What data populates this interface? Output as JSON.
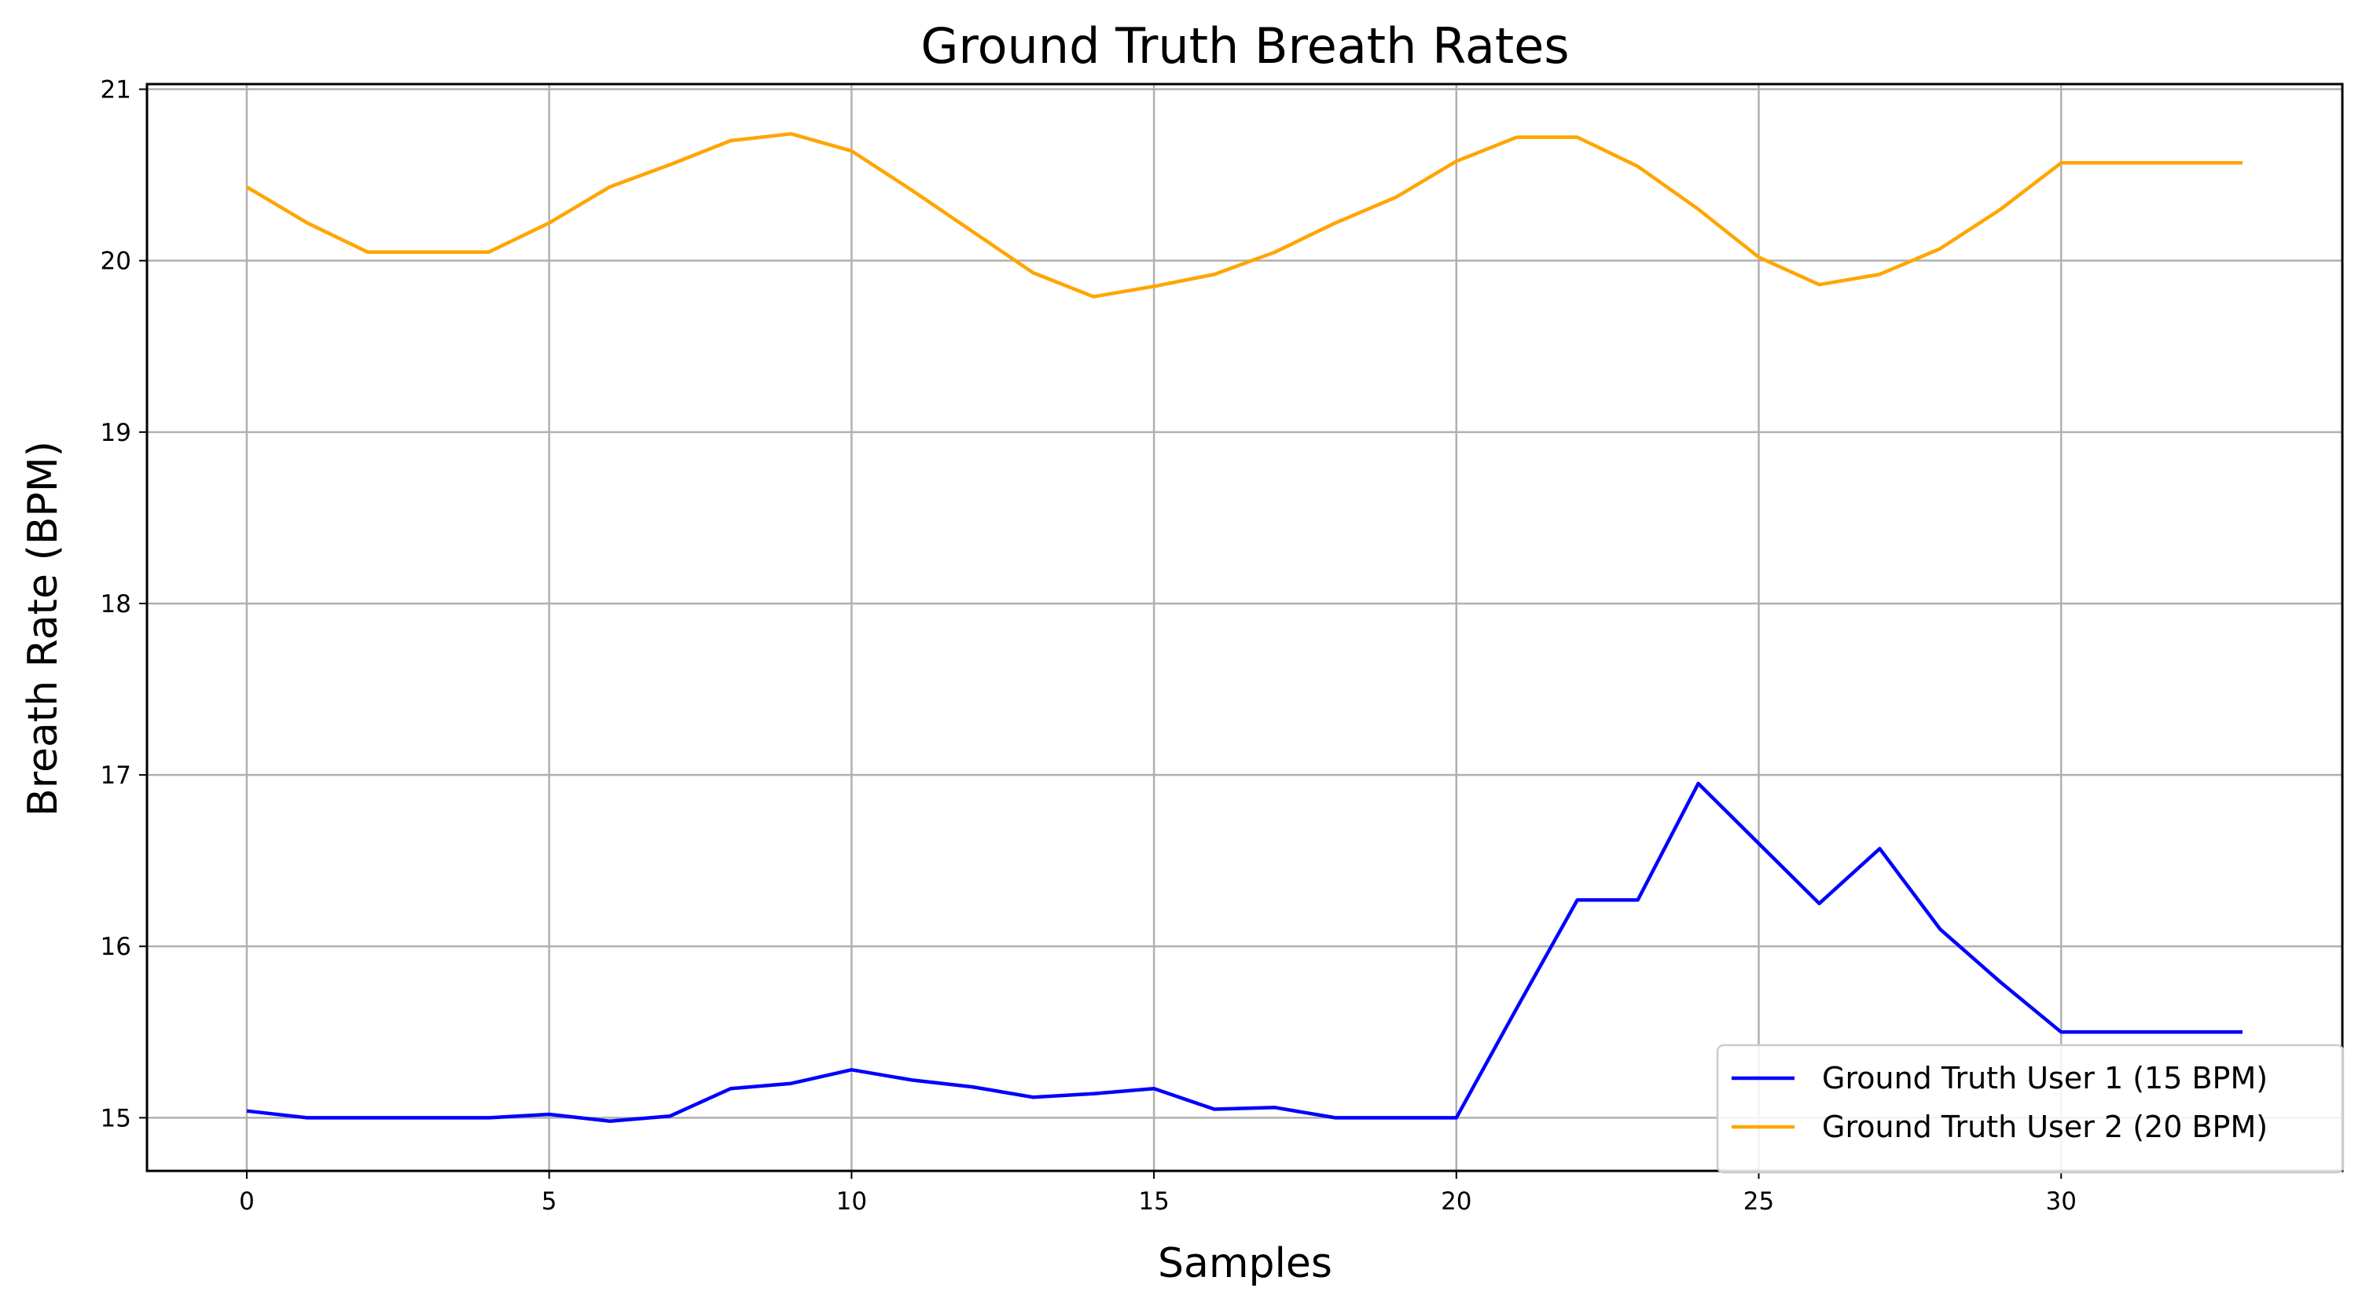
{
  "chart_data": {
    "type": "line",
    "title": "Ground Truth Breath Rates",
    "xlabel": "Samples",
    "ylabel": "Breath Rate (BPM)",
    "xlim": [
      -1.65,
      34.65
    ],
    "ylim": [
      14.69,
      21.03
    ],
    "x_ticks": [
      0,
      5,
      10,
      15,
      20,
      25,
      30
    ],
    "y_ticks": [
      15,
      16,
      17,
      18,
      19,
      20,
      21
    ],
    "grid": true,
    "legend_position": "lower right",
    "x": [
      0,
      1,
      2,
      3,
      4,
      5,
      6,
      7,
      8,
      9,
      10,
      11,
      12,
      13,
      14,
      15,
      16,
      17,
      18,
      19,
      20,
      21,
      22,
      23,
      24,
      25,
      26,
      27,
      28,
      29,
      30,
      31,
      32,
      33
    ],
    "series": [
      {
        "name": "Ground Truth User 1 (15 BPM)",
        "color": "#0000ff",
        "values": [
          15.04,
          15.0,
          15.0,
          15.0,
          15.0,
          15.02,
          14.98,
          15.01,
          15.17,
          15.2,
          15.28,
          15.22,
          15.18,
          15.12,
          15.14,
          15.17,
          15.05,
          15.06,
          15.0,
          15.0,
          15.0,
          15.64,
          16.27,
          16.27,
          16.95,
          16.6,
          16.25,
          16.57,
          16.1,
          15.79,
          15.5,
          15.5,
          15.5,
          15.5
        ]
      },
      {
        "name": "Ground Truth User 2 (20 BPM)",
        "color": "#ffa500",
        "values": [
          20.43,
          20.22,
          20.05,
          20.05,
          20.05,
          20.22,
          20.43,
          20.56,
          20.7,
          20.74,
          20.64,
          20.41,
          20.17,
          19.93,
          19.79,
          19.85,
          19.92,
          20.05,
          20.22,
          20.37,
          20.58,
          20.72,
          20.72,
          20.55,
          20.3,
          20.02,
          19.86,
          19.92,
          20.07,
          20.3,
          20.57,
          20.57,
          20.57,
          20.57
        ]
      }
    ]
  }
}
